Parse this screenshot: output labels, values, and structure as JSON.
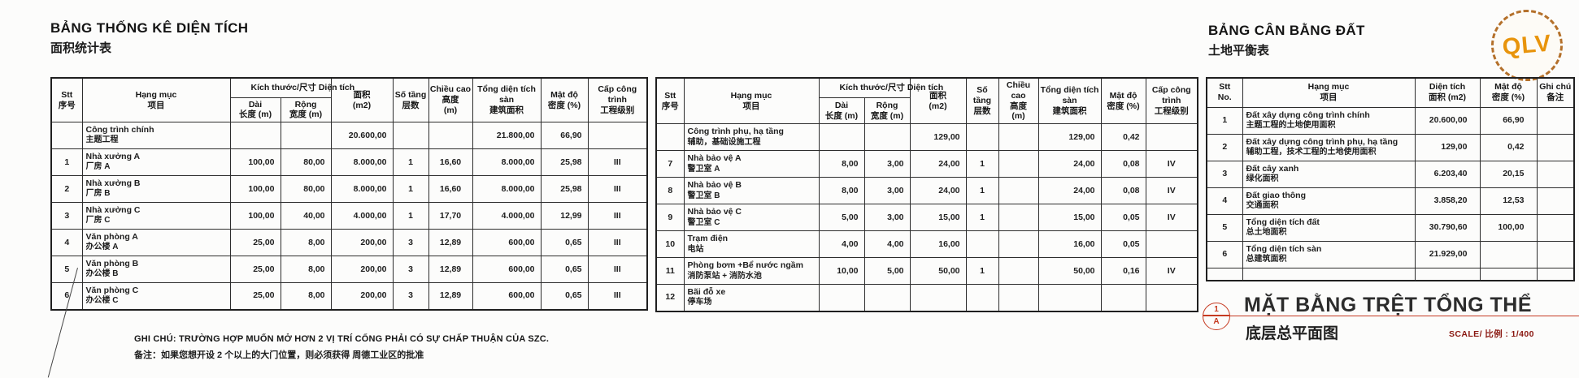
{
  "left_table": {
    "title_vi": "BẢNG THỐNG KÊ DIỆN TÍCH",
    "title_cn": "面积统计表",
    "rows": [
      {
        "stt": "",
        "vi": "Công trình chính",
        "cn": "主题工程",
        "dai": "",
        "rong": "",
        "dt": "20.600,00",
        "tang": "",
        "cao": "",
        "san": "21.800,00",
        "mdo": "66,90",
        "cap": ""
      },
      {
        "stt": "1",
        "vi": "Nhà xưởng A",
        "cn": "厂房  A",
        "dai": "100,00",
        "rong": "80,00",
        "dt": "8.000,00",
        "tang": "1",
        "cao": "16,60",
        "san": "8.000,00",
        "mdo": "25,98",
        "cap": "III"
      },
      {
        "stt": "2",
        "vi": "Nhà xưởng B",
        "cn": "厂房  B",
        "dai": "100,00",
        "rong": "80,00",
        "dt": "8.000,00",
        "tang": "1",
        "cao": "16,60",
        "san": "8.000,00",
        "mdo": "25,98",
        "cap": "III"
      },
      {
        "stt": "3",
        "vi": "Nhà xưởng C",
        "cn": "厂房  C",
        "dai": "100,00",
        "rong": "40,00",
        "dt": "4.000,00",
        "tang": "1",
        "cao": "17,70",
        "san": "4.000,00",
        "mdo": "12,99",
        "cap": "III"
      },
      {
        "stt": "4",
        "vi": "Văn phòng A",
        "cn": "办公楼  A",
        "dai": "25,00",
        "rong": "8,00",
        "dt": "200,00",
        "tang": "3",
        "cao": "12,89",
        "san": "600,00",
        "mdo": "0,65",
        "cap": "III"
      },
      {
        "stt": "5",
        "vi": "Văn phòng B",
        "cn": "办公楼  B",
        "dai": "25,00",
        "rong": "8,00",
        "dt": "200,00",
        "tang": "3",
        "cao": "12,89",
        "san": "600,00",
        "mdo": "0,65",
        "cap": "III"
      },
      {
        "stt": "6",
        "vi": "Văn phòng C",
        "cn": "办公楼  C",
        "dai": "25,00",
        "rong": "8,00",
        "dt": "200,00",
        "tang": "3",
        "cao": "12,89",
        "san": "600,00",
        "mdo": "0,65",
        "cap": "III"
      }
    ]
  },
  "middle_table": {
    "rows": [
      {
        "stt": "",
        "vi": "Công trình phụ, hạ tầng",
        "cn": "辅助，基础设施工程",
        "dai": "",
        "rong": "",
        "dt": "129,00",
        "tang": "",
        "cao": "",
        "san": "129,00",
        "mdo": "0,42",
        "cap": ""
      },
      {
        "stt": "7",
        "vi": "Nhà bảo vệ A",
        "cn": "警卫室  A",
        "dai": "8,00",
        "rong": "3,00",
        "dt": "24,00",
        "tang": "1",
        "cao": "",
        "san": "24,00",
        "mdo": "0,08",
        "cap": "IV"
      },
      {
        "stt": "8",
        "vi": "Nhà bảo vệ B",
        "cn": "警卫室  B",
        "dai": "8,00",
        "rong": "3,00",
        "dt": "24,00",
        "tang": "1",
        "cao": "",
        "san": "24,00",
        "mdo": "0,08",
        "cap": "IV"
      },
      {
        "stt": "9",
        "vi": "Nhà bảo vệ C",
        "cn": "警卫室  C",
        "dai": "5,00",
        "rong": "3,00",
        "dt": "15,00",
        "tang": "1",
        "cao": "",
        "san": "15,00",
        "mdo": "0,05",
        "cap": "IV"
      },
      {
        "stt": "10",
        "vi": "Trạm điện",
        "cn": "电站",
        "dai": "4,00",
        "rong": "4,00",
        "dt": "16,00",
        "tang": "",
        "cao": "",
        "san": "16,00",
        "mdo": "0,05",
        "cap": ""
      },
      {
        "stt": "11",
        "vi": "Phòng bơm +Bể nước ngầm",
        "cn": "消防泵站 + 消防水池",
        "dai": "10,00",
        "rong": "5,00",
        "dt": "50,00",
        "tang": "1",
        "cao": "",
        "san": "50,00",
        "mdo": "0,16",
        "cap": "IV"
      },
      {
        "stt": "12",
        "vi": "Bãi đỗ xe",
        "cn": "停车场",
        "dai": "",
        "rong": "",
        "dt": "",
        "tang": "",
        "cao": "",
        "san": "",
        "mdo": "",
        "cap": ""
      }
    ]
  },
  "area_header": {
    "stt_vi": "Stt",
    "stt_cn": "序号",
    "hang_muc_vi": "Hạng mục",
    "hang_muc_cn": "项目",
    "kich_thuoc": "Kích thước/尺寸  Diện tích",
    "dai_vi": "Dài",
    "dai_cn": "长度  (m)",
    "rong_vi": "Rộng",
    "rong_cn": "宽度  (m)",
    "dien_tich_cn": "面积",
    "dien_tich_unit": "(m2)",
    "so_tang_vi": "Số tầng",
    "so_tang_cn": "层数",
    "chieu_cao_vi": "Chiều cao",
    "chieu_cao_cn": "高度",
    "chieu_cao_unit": "(m)",
    "tong_san_vi": "Tổng diện tích sàn",
    "tong_san_cn": "建筑面积",
    "mat_do_vi": "Mật độ",
    "mat_do_cn": "密度  (%)",
    "cap_vi": "Cấp công trình",
    "cap_cn": "工程级别"
  },
  "right_table": {
    "title_vi": "BẢNG CÂN BẰNG ĐẤT",
    "title_cn": "土地平衡表",
    "header": {
      "stt_vi": "Stt",
      "stt_cn": "No.",
      "hang_muc_vi": "Hạng mục",
      "hang_muc_cn": "项目",
      "dien_tich_vi": "Diện tích",
      "dien_tich_cn": "面积  (m2)",
      "mat_do_vi": "Mật độ",
      "mat_do_cn": "密度  (%)",
      "ghi_chu_vi": "Ghi chú",
      "ghi_chu_cn": "备注"
    },
    "rows": [
      {
        "stt": "1",
        "vi": "Đất xây dựng công trình chính",
        "cn": "主题工程的土地使用面积",
        "dt": "20.600,00",
        "mdo": "66,90",
        "ghi": ""
      },
      {
        "stt": "2",
        "vi": "Đất xây dựng công trình phụ, hạ tầng",
        "cn": "辅助工程，技术工程的土地使用面积",
        "dt": "129,00",
        "mdo": "0,42",
        "ghi": ""
      },
      {
        "stt": "3",
        "vi": "Đất cây xanh",
        "cn": "绿化面积",
        "dt": "6.203,40",
        "mdo": "20,15",
        "ghi": ""
      },
      {
        "stt": "4",
        "vi": "Đất giao thông",
        "cn": "交通面积",
        "dt": "3.858,20",
        "mdo": "12,53",
        "ghi": ""
      },
      {
        "stt": "5",
        "vi": "Tổng diện tích đất",
        "cn": "总土地面积",
        "dt": "30.790,60",
        "mdo": "100,00",
        "ghi": ""
      },
      {
        "stt": "6",
        "vi": "Tổng diện tích sàn",
        "cn": "总建筑面积",
        "dt": "21.929,00",
        "mdo": "",
        "ghi": ""
      },
      {
        "stt": "",
        "vi": "",
        "cn": "",
        "dt": "",
        "mdo": "",
        "ghi": ""
      }
    ]
  },
  "note": {
    "vi": "GHI CHÚ: TRƯỜNG HỢP MUỐN MỞ HƠN 2 VỊ TRÍ CỔNG PHẢI CÓ SỰ CHẤP THUẬN CỦA SZC.",
    "cn": "备注：如果您想开设 2 个以上的大门位置，则必须获得 周德工业区的批准"
  },
  "stamp": {
    "text": "QLV",
    "color": "#e8940c"
  },
  "drawing_title": {
    "marker_top": "1",
    "marker_bottom": "A",
    "vi": "MẶT BẰNG TRỆT TỔNG THỂ",
    "cn": "底层总平面图",
    "scale_label": "SCALE/ 比例 : 1/400",
    "accent": "#c63a21"
  }
}
